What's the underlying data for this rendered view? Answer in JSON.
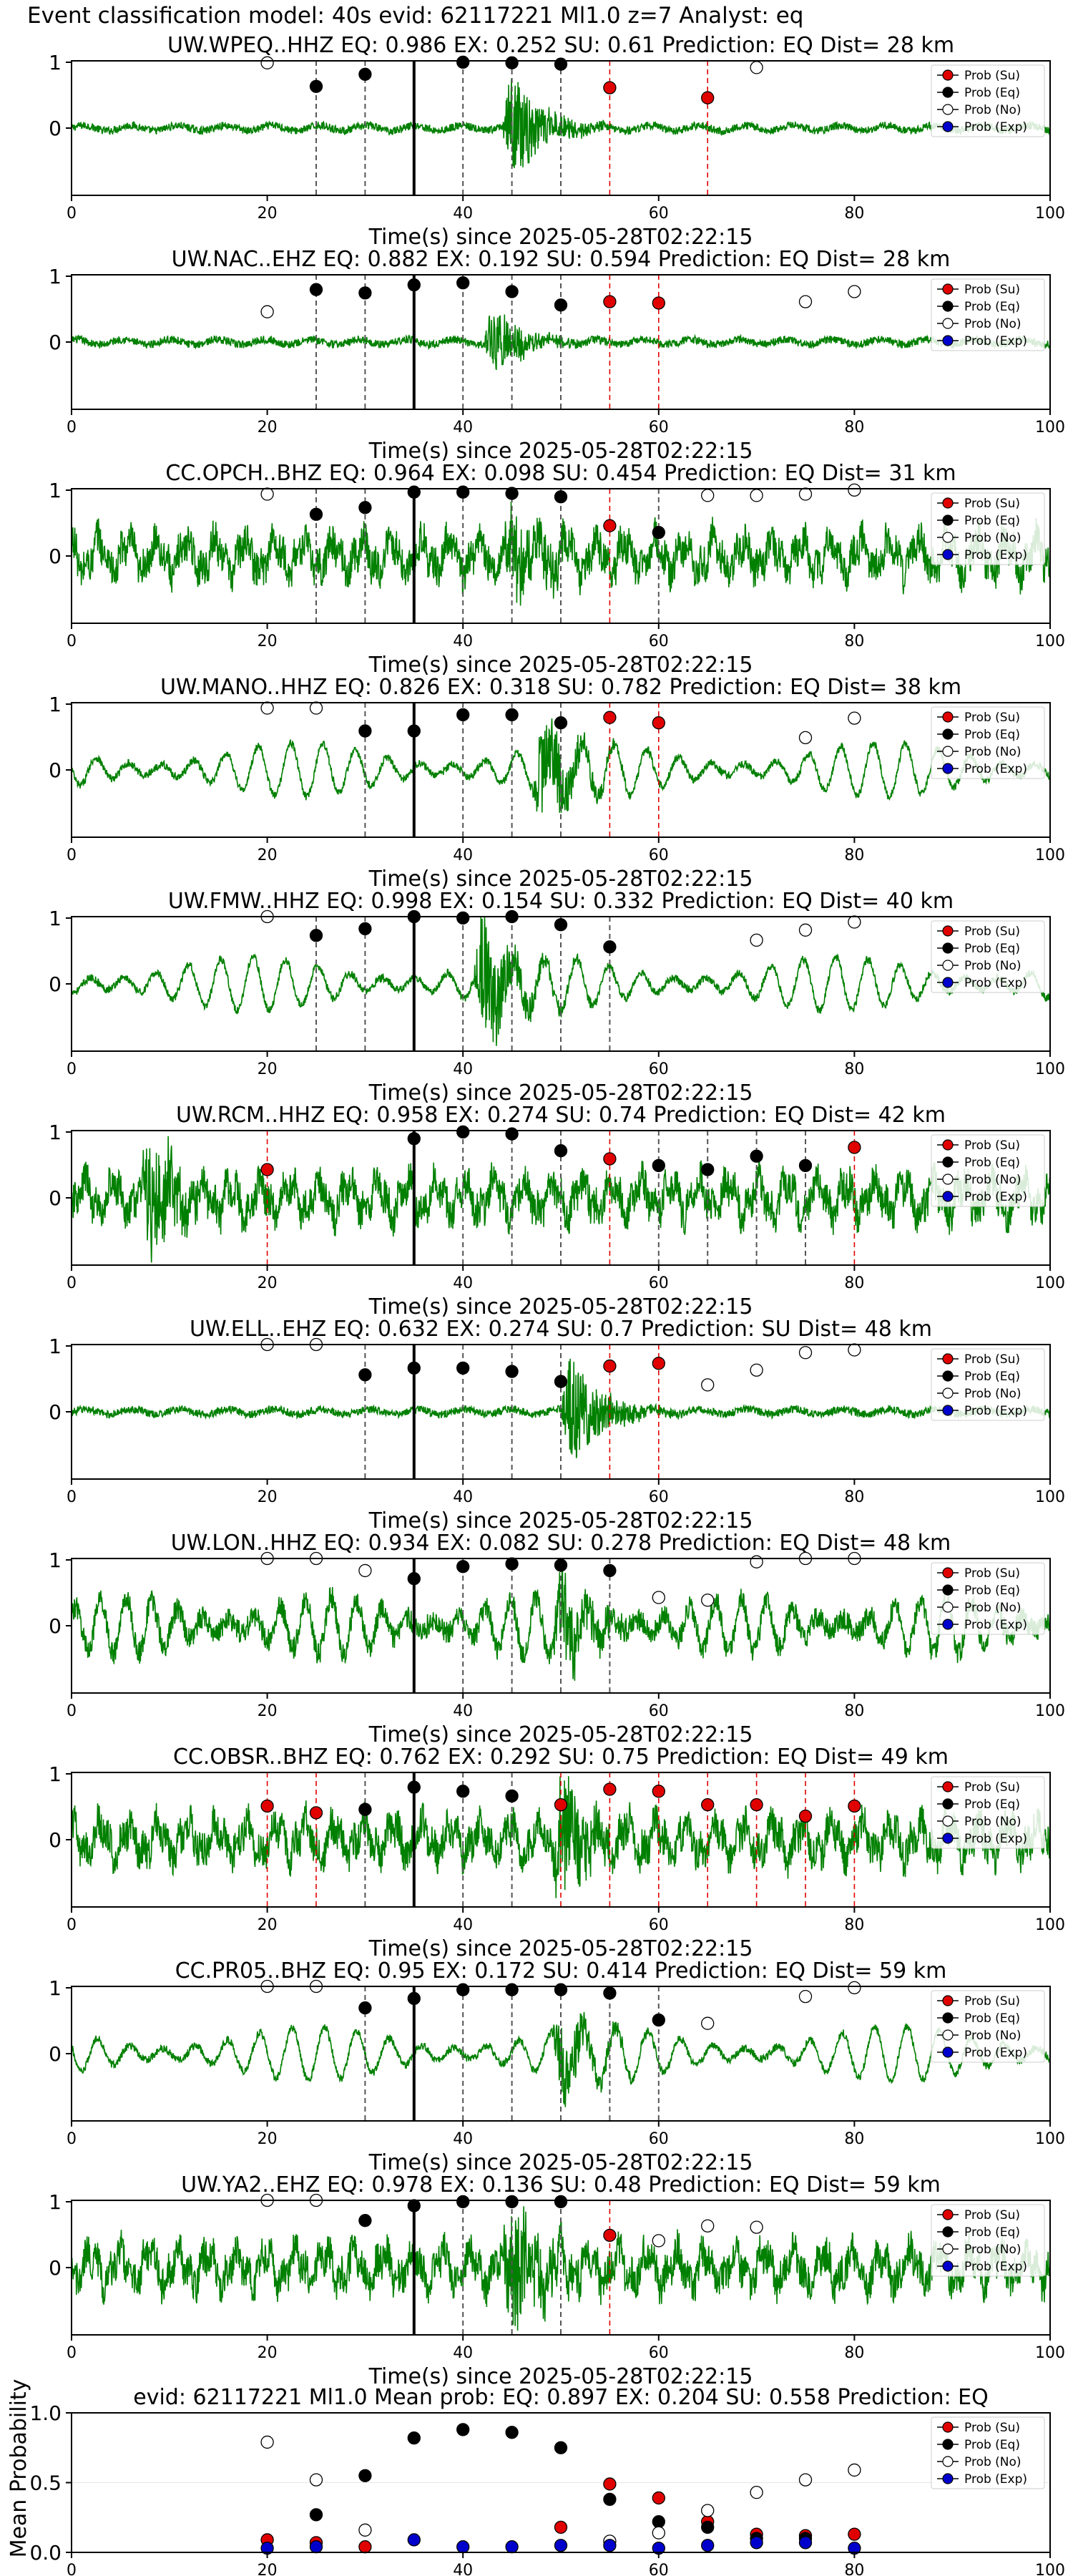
{
  "figure": {
    "suptitle": "Event classification model: 40s evid: 62117221 Ml1.0 z=7 Analyst: eq"
  },
  "legend_labels": [
    "Prob (Su)",
    "Prob (Eq)",
    "Prob (No)",
    "Prob (Exp)"
  ],
  "colors": {
    "waveform": "#008000",
    "su": "#e00000",
    "eq": "#000000",
    "no": "#ffffff",
    "exp": "#0000cc",
    "su_line": "#e00000",
    "eq_line": "#555555"
  },
  "chart_data": [
    {
      "type": "line",
      "title": "UW.WPEQ..HHZ   EQ: 0.986  EX: 0.252  SU: 0.61   Prediction: EQ    Dist= 28 km",
      "xlabel": "Time(s) since 2025-05-28T02:22:15",
      "xlim": [
        0,
        100
      ],
      "ylim": [
        -1,
        1
      ],
      "xticks": [
        "0",
        "20",
        "40",
        "60",
        "80",
        "100"
      ],
      "yticks": [
        "1",
        "0"
      ],
      "waveform": {
        "arrival_s": 40,
        "character": "quiet",
        "event_s": 45,
        "event_amp": 0.9,
        "arrival_mark_s": 35
      },
      "series": [
        {
          "name": "Prob (Su)",
          "x": [
            55,
            65
          ],
          "y": [
            0.6,
            0.45
          ]
        },
        {
          "name": "Prob (Eq)",
          "x": [
            25,
            30,
            40,
            45,
            50
          ],
          "y": [
            0.62,
            0.8,
            0.98,
            0.97,
            0.95
          ]
        },
        {
          "name": "Prob (No)",
          "x": [
            20,
            70
          ],
          "y": [
            0.97,
            0.9
          ]
        },
        {
          "name": "Prob (Exp)",
          "x": [],
          "y": []
        }
      ],
      "vlines_su": [
        55,
        65
      ],
      "vlines_eq": [
        25,
        30,
        40,
        45,
        50
      ]
    },
    {
      "type": "line",
      "title": "UW.NAC..EHZ   EQ: 0.882  EX: 0.192  SU: 0.594   Prediction: EQ    Dist= 28 km",
      "xlabel": "Time(s) since 2025-05-28T02:22:15",
      "xlim": [
        0,
        100
      ],
      "ylim": [
        -1,
        1
      ],
      "xticks": [
        "0",
        "20",
        "40",
        "60",
        "80",
        "100"
      ],
      "yticks": [
        "1",
        "0"
      ],
      "waveform": {
        "character": "quiet",
        "event_s": 43,
        "event_amp": 0.55,
        "arrival_mark_s": 35
      },
      "series": [
        {
          "name": "Prob (Su)",
          "x": [
            55,
            60
          ],
          "y": [
            0.6,
            0.58
          ]
        },
        {
          "name": "Prob (Eq)",
          "x": [
            25,
            30,
            35,
            40,
            45,
            50
          ],
          "y": [
            0.78,
            0.73,
            0.85,
            0.88,
            0.75,
            0.55
          ]
        },
        {
          "name": "Prob (No)",
          "x": [
            20,
            75,
            80
          ],
          "y": [
            0.45,
            0.6,
            0.75
          ]
        },
        {
          "name": "Prob (Exp)",
          "x": [],
          "y": []
        }
      ],
      "vlines_su": [
        55,
        60
      ],
      "vlines_eq": [
        25,
        30,
        40,
        45,
        50
      ]
    },
    {
      "type": "line",
      "title": "CC.OPCH..BHZ   EQ: 0.964  EX: 0.098  SU: 0.454   Prediction: EQ    Dist= 31 km",
      "xlabel": "Time(s) since 2025-05-28T02:22:15",
      "xlim": [
        0,
        100
      ],
      "ylim": [
        -1,
        1
      ],
      "xticks": [
        "0",
        "20",
        "40",
        "60",
        "80",
        "100"
      ],
      "yticks": [
        "1",
        "0"
      ],
      "waveform": {
        "character": "noisy",
        "event_s": 45,
        "event_amp": 0.7,
        "arrival_mark_s": 35
      },
      "series": [
        {
          "name": "Prob (Su)",
          "x": [
            55
          ],
          "y": [
            0.45
          ]
        },
        {
          "name": "Prob (Eq)",
          "x": [
            25,
            30,
            35,
            40,
            45,
            50,
            60
          ],
          "y": [
            0.62,
            0.72,
            0.95,
            0.95,
            0.93,
            0.88,
            0.35
          ]
        },
        {
          "name": "Prob (No)",
          "x": [
            20,
            65,
            70,
            75,
            80
          ],
          "y": [
            0.92,
            0.9,
            0.9,
            0.92,
            0.98
          ]
        },
        {
          "name": "Prob (Exp)",
          "x": [],
          "y": []
        }
      ],
      "vlines_su": [
        55
      ],
      "vlines_eq": [
        25,
        30,
        40,
        45,
        50,
        60
      ]
    },
    {
      "type": "line",
      "title": "UW.MANO..HHZ   EQ: 0.826  EX: 0.318  SU: 0.782   Prediction: EQ    Dist= 38 km",
      "xlabel": "Time(s) since 2025-05-28T02:22:15",
      "xlim": [
        0,
        100
      ],
      "ylim": [
        -1,
        1
      ],
      "xticks": [
        "0",
        "20",
        "40",
        "60",
        "80",
        "100"
      ],
      "yticks": [
        "1",
        "0"
      ],
      "waveform": {
        "character": "wavy",
        "event_s": 48,
        "event_amp": 0.85,
        "arrival_mark_s": 35
      },
      "series": [
        {
          "name": "Prob (Su)",
          "x": [
            55,
            60
          ],
          "y": [
            0.78,
            0.7
          ]
        },
        {
          "name": "Prob (Eq)",
          "x": [
            30,
            35,
            40,
            45,
            50
          ],
          "y": [
            0.58,
            0.58,
            0.82,
            0.82,
            0.7
          ]
        },
        {
          "name": "Prob (No)",
          "x": [
            20,
            25,
            75,
            80
          ],
          "y": [
            0.92,
            0.92,
            0.48,
            0.77
          ]
        },
        {
          "name": "Prob (Exp)",
          "x": [],
          "y": []
        }
      ],
      "vlines_su": [
        55,
        60
      ],
      "vlines_eq": [
        30,
        40,
        45,
        50
      ]
    },
    {
      "type": "line",
      "title": "UW.FMW..HHZ   EQ: 0.998  EX: 0.154  SU: 0.332   Prediction: EQ    Dist= 40 km",
      "xlabel": "Time(s) since 2025-05-28T02:22:15",
      "xlim": [
        0,
        100
      ],
      "ylim": [
        -1,
        1
      ],
      "xticks": [
        "0",
        "20",
        "40",
        "60",
        "80",
        "100"
      ],
      "yticks": [
        "1",
        "0"
      ],
      "waveform": {
        "character": "wavy",
        "event_s": 42,
        "event_amp": 1.0,
        "arrival_mark_s": 35
      },
      "series": [
        {
          "name": "Prob (Su)",
          "x": [],
          "y": []
        },
        {
          "name": "Prob (Eq)",
          "x": [
            25,
            30,
            35,
            40,
            45,
            50,
            55
          ],
          "y": [
            0.72,
            0.82,
            1.0,
            0.98,
            1.0,
            0.88,
            0.55
          ]
        },
        {
          "name": "Prob (No)",
          "x": [
            20,
            70,
            75,
            80
          ],
          "y": [
            1.0,
            0.65,
            0.8,
            0.92
          ]
        },
        {
          "name": "Prob (Exp)",
          "x": [],
          "y": []
        }
      ],
      "vlines_su": [],
      "vlines_eq": [
        25,
        30,
        40,
        45,
        50,
        55
      ]
    },
    {
      "type": "line",
      "title": "UW.RCM..HHZ   EQ: 0.958  EX: 0.274  SU: 0.74   Prediction: EQ    Dist= 42 km",
      "xlabel": "Time(s) since 2025-05-28T02:22:15",
      "xlim": [
        0,
        100
      ],
      "ylim": [
        -1,
        1
      ],
      "xticks": [
        "0",
        "20",
        "40",
        "60",
        "80",
        "100"
      ],
      "yticks": [
        "1",
        "0"
      ],
      "waveform": {
        "character": "noisy",
        "event_s": 8,
        "event_amp": 1.0,
        "arrival_mark_s": 35
      },
      "series": [
        {
          "name": "Prob (Su)",
          "x": [
            20,
            55,
            80
          ],
          "y": [
            0.42,
            0.58,
            0.75
          ]
        },
        {
          "name": "Prob (Eq)",
          "x": [
            35,
            40,
            45,
            50,
            60,
            65,
            70,
            75
          ],
          "y": [
            0.88,
            0.98,
            0.95,
            0.7,
            0.48,
            0.42,
            0.62,
            0.48
          ]
        },
        {
          "name": "Prob (No)",
          "x": [],
          "y": []
        },
        {
          "name": "Prob (Exp)",
          "x": [],
          "y": []
        }
      ],
      "vlines_su": [
        20,
        55,
        80
      ],
      "vlines_eq": [
        40,
        45,
        50,
        60,
        65,
        70,
        75
      ]
    },
    {
      "type": "line",
      "title": "UW.ELL..EHZ   EQ: 0.632  EX: 0.274  SU: 0.7   Prediction: SU    Dist= 48 km",
      "xlabel": "Time(s) since 2025-05-28T02:22:15",
      "xlim": [
        0,
        100
      ],
      "ylim": [
        -1,
        1
      ],
      "xticks": [
        "0",
        "20",
        "40",
        "60",
        "80",
        "100"
      ],
      "yticks": [
        "1",
        "0"
      ],
      "waveform": {
        "character": "quiet",
        "event_s": 51,
        "event_amp": 0.9,
        "arrival_mark_s": 35
      },
      "series": [
        {
          "name": "Prob (Su)",
          "x": [
            55,
            60
          ],
          "y": [
            0.68,
            0.72
          ]
        },
        {
          "name": "Prob (Eq)",
          "x": [
            30,
            35,
            40,
            45,
            50
          ],
          "y": [
            0.55,
            0.65,
            0.65,
            0.6,
            0.45
          ]
        },
        {
          "name": "Prob (No)",
          "x": [
            20,
            25,
            65,
            70,
            75,
            80
          ],
          "y": [
            1.0,
            1.0,
            0.4,
            0.62,
            0.88,
            0.92
          ]
        },
        {
          "name": "Prob (Exp)",
          "x": [],
          "y": []
        }
      ],
      "vlines_su": [
        55,
        60
      ],
      "vlines_eq": [
        30,
        40,
        45,
        50
      ]
    },
    {
      "type": "line",
      "title": "UW.LON..HHZ   EQ: 0.934  EX: 0.082  SU: 0.278   Prediction: EQ    Dist= 48 km",
      "xlabel": "Time(s) since 2025-05-28T02:22:15",
      "xlim": [
        0,
        100
      ],
      "ylim": [
        -1,
        1
      ],
      "xticks": [
        "0",
        "20",
        "40",
        "60",
        "80",
        "100"
      ],
      "yticks": [
        "1",
        "0"
      ],
      "waveform": {
        "character": "wavy-noisy",
        "event_s": 50,
        "event_amp": 0.7,
        "arrival_mark_s": 35
      },
      "series": [
        {
          "name": "Prob (Su)",
          "x": [],
          "y": []
        },
        {
          "name": "Prob (Eq)",
          "x": [
            35,
            40,
            45,
            50,
            55
          ],
          "y": [
            0.7,
            0.88,
            0.92,
            0.9,
            0.82
          ]
        },
        {
          "name": "Prob (No)",
          "x": [
            20,
            25,
            30,
            60,
            65,
            70,
            75,
            80
          ],
          "y": [
            1.0,
            1.0,
            0.82,
            0.42,
            0.38,
            0.95,
            1.0,
            1.0
          ]
        },
        {
          "name": "Prob (Exp)",
          "x": [],
          "y": []
        }
      ],
      "vlines_su": [],
      "vlines_eq": [
        40,
        45,
        50,
        55
      ]
    },
    {
      "type": "line",
      "title": "CC.OBSR..BHZ   EQ: 0.762  EX: 0.292  SU: 0.75   Prediction: EQ    Dist= 49 km",
      "xlabel": "Time(s) since 2025-05-28T02:22:15",
      "xlim": [
        0,
        100
      ],
      "ylim": [
        -1,
        1
      ],
      "xticks": [
        "0",
        "20",
        "40",
        "60",
        "80",
        "100"
      ],
      "yticks": [
        "1",
        "0"
      ],
      "waveform": {
        "character": "noisy",
        "event_s": 50,
        "event_amp": 0.8,
        "arrival_mark_s": 35
      },
      "series": [
        {
          "name": "Prob (Su)",
          "x": [
            20,
            25,
            50,
            55,
            60,
            65,
            70,
            75,
            80
          ],
          "y": [
            0.5,
            0.4,
            0.52,
            0.75,
            0.72,
            0.52,
            0.52,
            0.35,
            0.5
          ]
        },
        {
          "name": "Prob (Eq)",
          "x": [
            30,
            35,
            40,
            45
          ],
          "y": [
            0.45,
            0.78,
            0.72,
            0.65
          ]
        },
        {
          "name": "Prob (No)",
          "x": [],
          "y": []
        },
        {
          "name": "Prob (Exp)",
          "x": [],
          "y": []
        }
      ],
      "vlines_su": [
        20,
        25,
        50,
        55,
        60,
        65,
        70,
        75,
        80
      ],
      "vlines_eq": [
        30,
        40,
        45
      ]
    },
    {
      "type": "line",
      "title": "CC.PR05..BHZ   EQ: 0.95  EX: 0.172  SU: 0.414   Prediction: EQ    Dist= 59 km",
      "xlabel": "Time(s) since 2025-05-28T02:22:15",
      "xlim": [
        0,
        100
      ],
      "ylim": [
        -1,
        1
      ],
      "xticks": [
        "0",
        "20",
        "40",
        "60",
        "80",
        "100"
      ],
      "yticks": [
        "1",
        "0"
      ],
      "waveform": {
        "character": "wavy",
        "event_s": 50,
        "event_amp": 0.6,
        "arrival_mark_s": 35
      },
      "series": [
        {
          "name": "Prob (Su)",
          "x": [],
          "y": []
        },
        {
          "name": "Prob (Eq)",
          "x": [
            30,
            35,
            40,
            45,
            50,
            55,
            60
          ],
          "y": [
            0.68,
            0.82,
            0.95,
            0.95,
            0.95,
            0.9,
            0.5
          ]
        },
        {
          "name": "Prob (No)",
          "x": [
            20,
            25,
            65,
            75,
            80
          ],
          "y": [
            1.0,
            1.0,
            0.45,
            0.85,
            0.98
          ]
        },
        {
          "name": "Prob (Exp)",
          "x": [],
          "y": []
        }
      ],
      "vlines_su": [],
      "vlines_eq": [
        30,
        40,
        45,
        50,
        55,
        60
      ]
    },
    {
      "type": "line",
      "title": "UW.YA2..EHZ   EQ: 0.978  EX: 0.136  SU: 0.48   Prediction: EQ    Dist= 59 km",
      "xlabel": "Time(s) since 2025-05-28T02:22:15",
      "xlim": [
        0,
        100
      ],
      "ylim": [
        -1,
        1
      ],
      "xticks": [
        "0",
        "20",
        "40",
        "60",
        "80",
        "100"
      ],
      "yticks": [
        "1",
        "0"
      ],
      "waveform": {
        "character": "noisy",
        "event_s": 45,
        "event_amp": 1.0,
        "arrival_mark_s": 35
      },
      "series": [
        {
          "name": "Prob (Su)",
          "x": [
            55
          ],
          "y": [
            0.48
          ]
        },
        {
          "name": "Prob (Eq)",
          "x": [
            30,
            35,
            40,
            45,
            50
          ],
          "y": [
            0.7,
            0.92,
            0.98,
            0.98,
            0.98
          ]
        },
        {
          "name": "Prob (No)",
          "x": [
            20,
            25,
            60,
            65,
            70
          ],
          "y": [
            1.0,
            1.0,
            0.4,
            0.62,
            0.6
          ]
        },
        {
          "name": "Prob (Exp)",
          "x": [],
          "y": []
        }
      ],
      "vlines_su": [
        55
      ],
      "vlines_eq": [
        40,
        45,
        50
      ]
    },
    {
      "type": "scatter",
      "title": "evid: 62117221  Ml1.0   Mean prob:   EQ: 0.897  EX: 0.204  SU: 0.558   Prediction: EQ",
      "ylabel": "Mean Probability",
      "xlim": [
        0,
        100
      ],
      "ylim": [
        0,
        1
      ],
      "xticks": [
        "0",
        "20",
        "40",
        "60",
        "80",
        "100"
      ],
      "yticks": [
        "0.0",
        "0.5",
        "1.0"
      ],
      "series": [
        {
          "name": "Prob (Su)",
          "x": [
            20,
            25,
            30,
            50,
            55,
            60,
            65,
            70,
            75,
            80
          ],
          "y": [
            0.09,
            0.07,
            0.04,
            0.18,
            0.49,
            0.39,
            0.22,
            0.13,
            0.12,
            0.13
          ]
        },
        {
          "name": "Prob (Eq)",
          "x": [
            25,
            30,
            35,
            40,
            45,
            50,
            55,
            60,
            65,
            70,
            75
          ],
          "y": [
            0.27,
            0.55,
            0.82,
            0.88,
            0.86,
            0.75,
            0.38,
            0.22,
            0.18,
            0.1,
            0.1
          ]
        },
        {
          "name": "Prob (No)",
          "x": [
            20,
            25,
            30,
            55,
            60,
            65,
            70,
            75,
            80
          ],
          "y": [
            0.79,
            0.52,
            0.16,
            0.08,
            0.14,
            0.3,
            0.43,
            0.52,
            0.59
          ]
        },
        {
          "name": "Prob (Exp)",
          "x": [
            20,
            25,
            35,
            40,
            45,
            50,
            55,
            60,
            65,
            70,
            75,
            80
          ],
          "y": [
            0.03,
            0.04,
            0.09,
            0.04,
            0.04,
            0.05,
            0.05,
            0.03,
            0.05,
            0.07,
            0.07,
            0.03
          ]
        }
      ]
    }
  ]
}
